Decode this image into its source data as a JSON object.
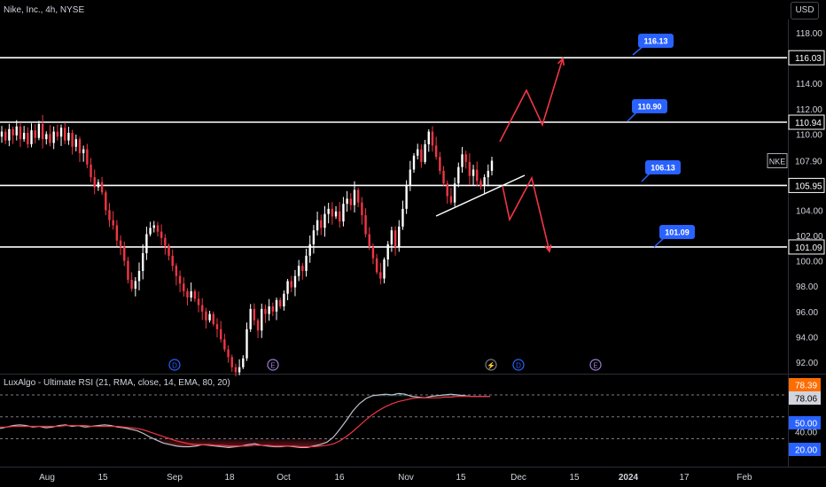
{
  "header": {
    "symbol_title": "Nike, Inc., 4h, NYSE",
    "currency": "USD"
  },
  "indicator": {
    "title": "LuxAlgo - Ultimate RSI (21, RMA, close, 14, EMA, 80, 20)"
  },
  "chart_data": {
    "type": "candlestick",
    "ticker": "NKE",
    "last_price": "107.90",
    "y_axis": {
      "min": 91.5,
      "max": 119.5,
      "ticks": [
        "118.00",
        "114.00",
        "112.00",
        "110.00",
        "104.00",
        "102.00",
        "100.00",
        "98.00",
        "96.00",
        "94.00",
        "92.00"
      ],
      "tick_values": [
        118,
        114,
        112,
        110,
        104,
        102,
        100,
        98,
        96,
        94,
        92
      ]
    },
    "x_axis": {
      "labels": [
        "Aug",
        "15",
        "Sep",
        "18",
        "Oct",
        "16",
        "Nov",
        "15",
        "Dec",
        "15",
        "2024",
        "17",
        "Feb"
      ]
    },
    "horizontal_levels": [
      {
        "value": 116.03,
        "label": "116.03",
        "callout": "116.13"
      },
      {
        "value": 110.94,
        "label": "110.94",
        "callout": "110.90"
      },
      {
        "value": 105.95,
        "label": "105.95",
        "callout": "106.13"
      },
      {
        "value": 101.09,
        "label": "101.09",
        "callout": "101.09"
      }
    ],
    "price_path": [
      109.8,
      110.2,
      109.5,
      110.4,
      109.9,
      110.6,
      109.6,
      110.1,
      109.2,
      110.3,
      109.7,
      110.8,
      109.6,
      110.0,
      109.3,
      110.2,
      109.8,
      110.5,
      109.5,
      110.1,
      109.0,
      109.6,
      108.5,
      108.8,
      107.6,
      106.6,
      105.8,
      106.2,
      105.4,
      104.0,
      103.2,
      102.8,
      101.6,
      101.1,
      100.0,
      98.5,
      97.8,
      98.4,
      99.2,
      100.6,
      102.1,
      102.6,
      102.8,
      102.3,
      101.8,
      101.2,
      100.4,
      99.6,
      98.8,
      98.2,
      97.6,
      97.1,
      97.6,
      97.0,
      96.5,
      96.0,
      95.3,
      95.8,
      95.0,
      94.6,
      93.8,
      93.0,
      92.4,
      91.6,
      91.2,
      91.6,
      92.3,
      94.6,
      96.2,
      95.3,
      94.5,
      96.2,
      95.8,
      96.4,
      96.0,
      96.9,
      96.4,
      97.4,
      98.4,
      97.9,
      98.8,
      99.6,
      99.2,
      100.4,
      101.3,
      102.4,
      103.2,
      102.6,
      103.7,
      104.1,
      103.5,
      103.9,
      103.1,
      104.5,
      104.9,
      104.4,
      105.6,
      104.6,
      103.6,
      102.1,
      101.1,
      100.2,
      99.1,
      98.6,
      100.1,
      101.3,
      102.4,
      101.1,
      102.7,
      104.1,
      106.0,
      107.2,
      108.3,
      108.8,
      107.8,
      109.2,
      110.2,
      109.1,
      108.2,
      107.1,
      106.1,
      105.1,
      104.6,
      106.1,
      107.4,
      108.4,
      107.8,
      106.7,
      107.2,
      106.3,
      105.9,
      106.6,
      107.1,
      107.9
    ],
    "projections": [
      {
        "color": "#f23645",
        "points": [
          [
            564,
            160
          ],
          [
            594,
            102
          ],
          [
            612,
            141
          ],
          [
            635,
            66
          ]
        ]
      },
      {
        "color": "#f23645",
        "points": [
          [
            567,
            210
          ],
          [
            575,
            248
          ],
          [
            600,
            201
          ],
          [
            620,
            284
          ]
        ]
      }
    ],
    "trendline": {
      "from": [
        492,
        244
      ],
      "to": [
        592,
        198
      ],
      "color": "#ffffff"
    },
    "event_markers": [
      {
        "x": 197,
        "glyph": "D",
        "color": "#2962ff"
      },
      {
        "x": 308,
        "glyph": "E",
        "color": "#9c7dd6"
      },
      {
        "x": 554,
        "glyph": "⚡",
        "color": "#787b86"
      },
      {
        "x": 585,
        "glyph": "D",
        "color": "#2962ff"
      },
      {
        "x": 672,
        "glyph": "E",
        "color": "#9c7dd6"
      }
    ],
    "rsi": {
      "visible_ticks": [
        "78.39",
        "78.06",
        "50.00",
        "40.00",
        "20.00"
      ],
      "overbought": 80,
      "oversold": 20,
      "values": [
        34,
        36,
        38,
        39,
        38,
        36,
        37,
        35,
        36,
        38,
        39,
        37,
        38,
        36,
        37,
        38,
        39,
        38,
        36,
        35,
        33,
        31,
        27,
        22,
        18,
        14,
        12,
        10,
        9,
        9,
        10,
        12,
        11,
        10,
        9,
        8,
        9,
        10,
        12,
        13,
        11,
        10,
        9,
        9,
        10,
        9,
        8,
        8,
        10,
        12,
        15,
        22,
        33,
        45,
        58,
        68,
        75,
        79,
        80,
        81,
        80,
        82,
        81,
        78,
        77,
        76,
        78,
        79,
        80,
        81,
        80,
        79,
        78,
        78,
        78,
        78
      ],
      "signal": [
        36,
        36,
        37,
        37,
        37,
        37,
        37,
        37,
        37,
        37,
        38,
        38,
        38,
        38,
        37,
        37,
        37,
        37,
        37,
        36,
        35,
        34,
        32,
        29,
        26,
        23,
        20,
        17,
        15,
        13,
        12,
        12,
        12,
        11,
        11,
        10,
        10,
        10,
        10,
        11,
        11,
        11,
        10,
        10,
        10,
        10,
        9,
        9,
        9,
        10,
        11,
        13,
        17,
        23,
        30,
        38,
        46,
        53,
        59,
        64,
        68,
        71,
        73,
        75,
        76,
        76,
        76,
        76,
        77,
        77,
        78,
        78,
        78,
        78,
        78,
        78
      ],
      "overbought_color": "#4db6ac",
      "oversold_color": "#f23645"
    },
    "colors": {
      "up": "#ffffff",
      "down": "#f23645",
      "level_line": "#ffffff",
      "callout_bg": "#2962ff",
      "rsi_label_orange": "#ff6d00",
      "rsi_label_blue": "#2962ff"
    }
  }
}
